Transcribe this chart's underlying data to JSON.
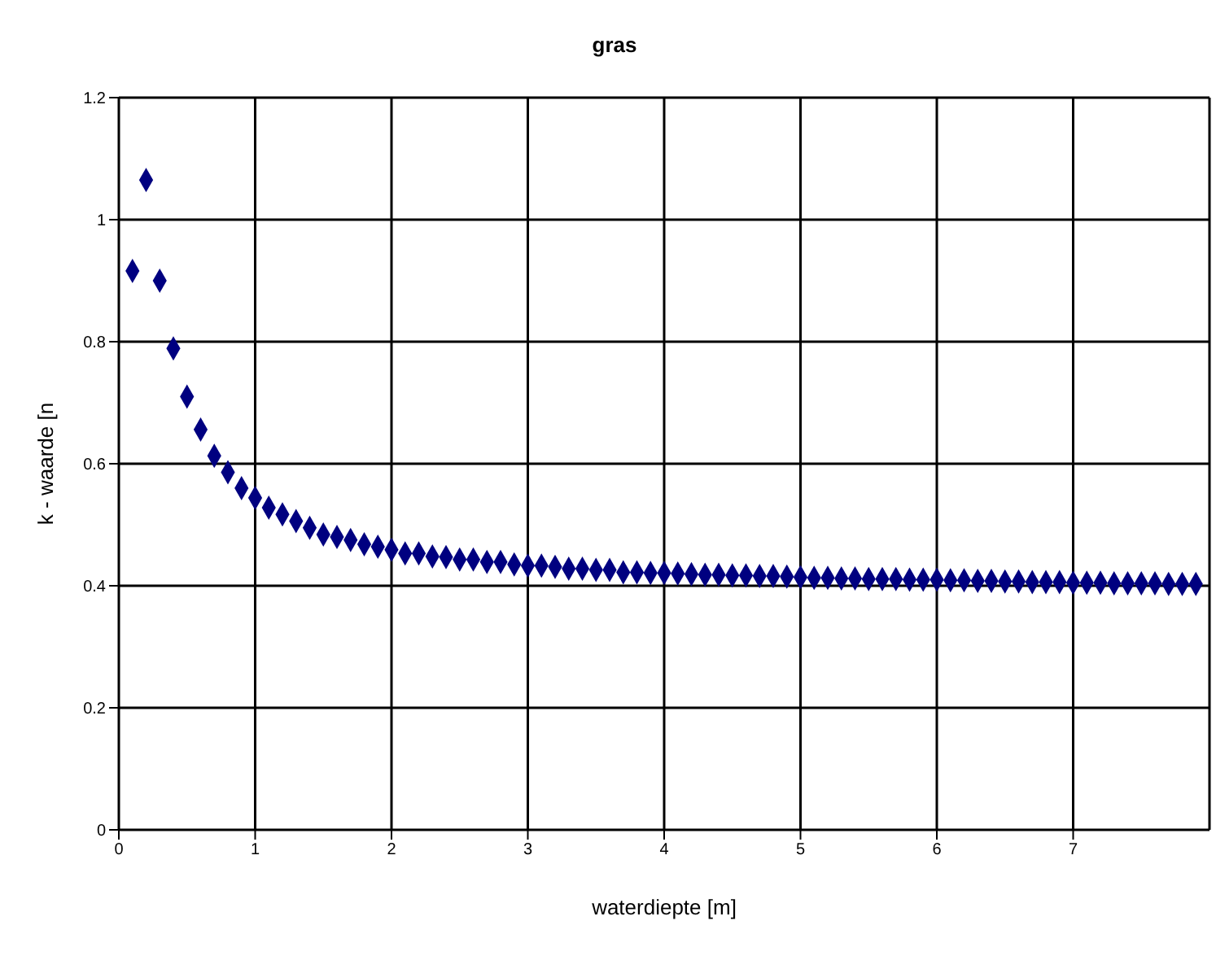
{
  "chart_data": {
    "type": "scatter",
    "title": "gras",
    "xlabel": "waterdiepte [m]",
    "ylabel": "k - waarde [n",
    "xlim": [
      0,
      8
    ],
    "xticks": [
      0,
      1,
      2,
      3,
      4,
      5,
      6,
      7
    ],
    "ylim": [
      0,
      1.2
    ],
    "yticks": [
      0,
      0.2,
      0.4,
      0.6,
      0.8,
      1,
      1.2
    ],
    "grid": true,
    "marker": "diamond",
    "x": [
      0.1,
      0.2,
      0.3,
      0.4,
      0.5,
      0.6,
      0.7,
      0.8,
      0.9,
      1.0,
      1.1,
      1.2,
      1.3,
      1.4,
      1.5,
      1.6,
      1.7,
      1.8,
      1.9,
      2.0,
      2.1,
      2.2,
      2.3,
      2.4,
      2.5,
      2.6,
      2.7,
      2.8,
      2.9,
      3.0,
      3.1,
      3.2,
      3.3,
      3.4,
      3.5,
      3.6,
      3.7,
      3.8,
      3.9,
      4.0,
      4.1,
      4.2,
      4.3,
      4.4,
      4.5,
      4.6,
      4.7,
      4.8,
      4.9,
      5.0,
      5.1,
      5.2,
      5.3,
      5.4,
      5.5,
      5.6,
      5.7,
      5.8,
      5.9,
      6.0,
      6.1,
      6.2,
      6.3,
      6.4,
      6.5,
      6.6,
      6.7,
      6.8,
      6.9,
      7.0,
      7.1,
      7.2,
      7.3,
      7.4,
      7.5,
      7.6,
      7.7,
      7.8,
      7.9
    ],
    "series": [
      {
        "color": "#000080",
        "values": [
          0.916,
          1.065,
          0.9,
          0.789,
          0.71,
          0.656,
          0.613,
          0.586,
          0.56,
          0.544,
          0.528,
          0.517,
          0.506,
          0.495,
          0.484,
          0.48,
          0.475,
          0.468,
          0.464,
          0.459,
          0.453,
          0.453,
          0.448,
          0.447,
          0.443,
          0.443,
          0.439,
          0.439,
          0.435,
          0.433,
          0.433,
          0.431,
          0.428,
          0.428,
          0.426,
          0.426,
          0.422,
          0.422,
          0.421,
          0.421,
          0.42,
          0.419,
          0.418,
          0.418,
          0.417,
          0.417,
          0.416,
          0.416,
          0.415,
          0.414,
          0.413,
          0.413,
          0.412,
          0.412,
          0.411,
          0.411,
          0.411,
          0.41,
          0.41,
          0.41,
          0.409,
          0.409,
          0.408,
          0.408,
          0.407,
          0.407,
          0.406,
          0.406,
          0.406,
          0.405,
          0.405,
          0.405,
          0.404,
          0.404,
          0.404,
          0.404,
          0.403,
          0.403,
          0.403
        ]
      }
    ]
  }
}
